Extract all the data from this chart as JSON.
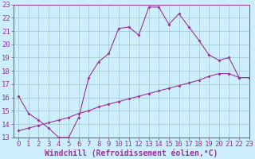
{
  "line1_x": [
    0,
    1,
    2,
    3,
    4,
    5,
    6,
    7,
    8,
    9,
    10,
    11,
    12,
    13,
    14,
    15,
    16,
    17,
    18,
    19,
    20,
    21,
    22,
    23
  ],
  "line1_y": [
    16.1,
    14.8,
    14.3,
    13.7,
    13.0,
    13.0,
    14.5,
    17.5,
    18.7,
    19.3,
    21.2,
    21.3,
    20.7,
    22.8,
    22.8,
    21.5,
    22.3,
    21.3,
    20.3,
    19.2,
    18.8,
    19.0,
    17.5,
    17.5
  ],
  "line2_x": [
    0,
    1,
    2,
    3,
    4,
    5,
    6,
    7,
    8,
    9,
    10,
    11,
    12,
    13,
    14,
    15,
    16,
    17,
    18,
    19,
    20,
    21,
    22,
    23
  ],
  "line2_y": [
    13.5,
    13.7,
    13.9,
    14.1,
    14.3,
    14.5,
    14.8,
    15.0,
    15.3,
    15.5,
    15.7,
    15.9,
    16.1,
    16.3,
    16.5,
    16.7,
    16.9,
    17.1,
    17.3,
    17.6,
    17.8,
    17.8,
    17.5,
    17.5
  ],
  "line_color": "#993399",
  "bg_color": "#cceeff",
  "grid_color": "#aacccc",
  "xlabel": "Windchill (Refroidissement éolien,°C)",
  "xlim": [
    -0.5,
    23
  ],
  "ylim": [
    13,
    23
  ],
  "yticks": [
    13,
    14,
    15,
    16,
    17,
    18,
    19,
    20,
    21,
    22,
    23
  ],
  "xticks": [
    0,
    1,
    2,
    3,
    4,
    5,
    6,
    7,
    8,
    9,
    10,
    11,
    12,
    13,
    14,
    15,
    16,
    17,
    18,
    19,
    20,
    21,
    22,
    23
  ],
  "tick_fontsize": 6.5,
  "xlabel_fontsize": 7.0
}
